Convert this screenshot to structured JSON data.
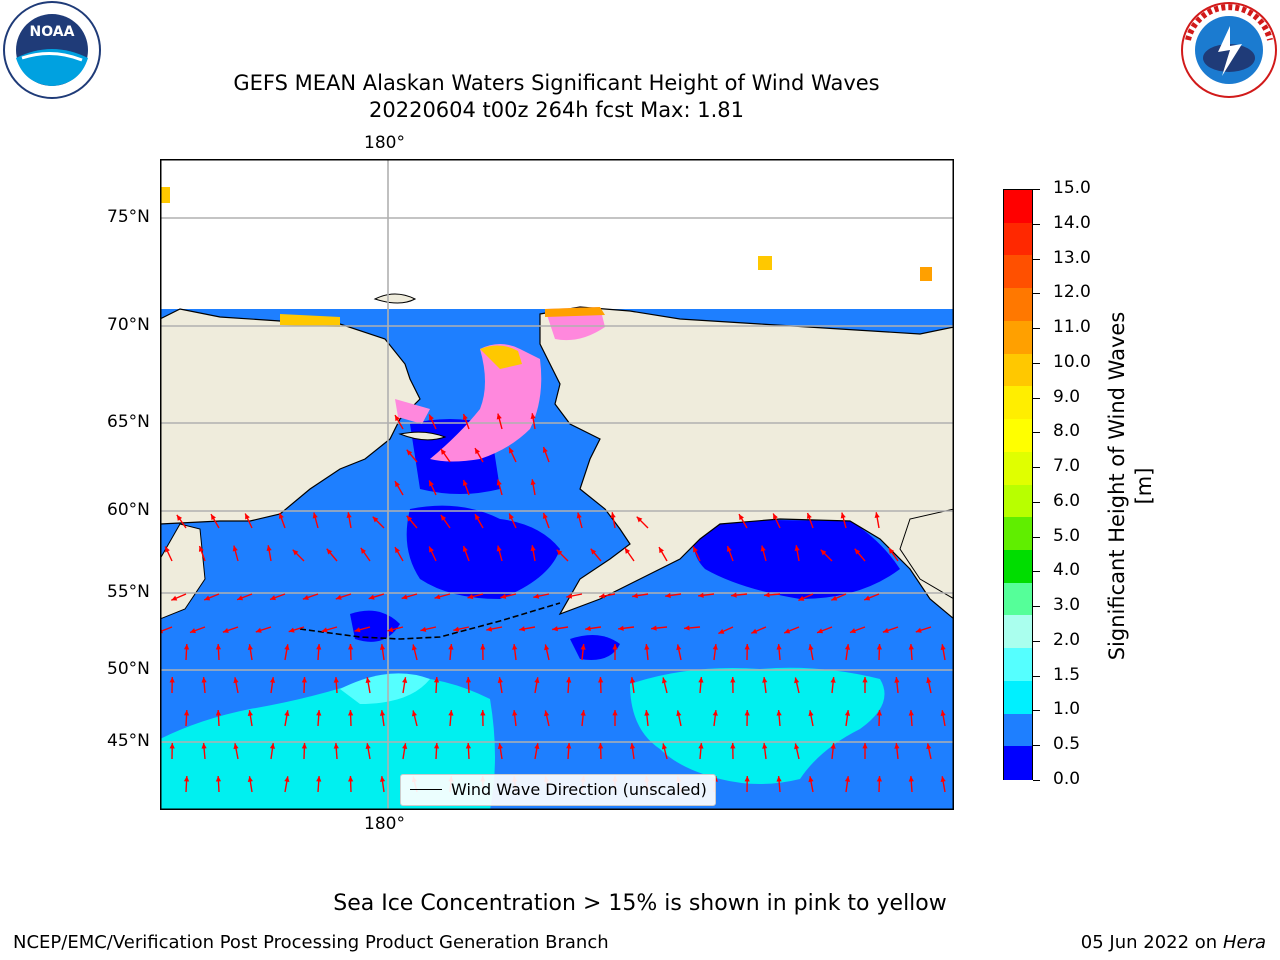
{
  "header": {
    "title_line1": "GEFS MEAN Alaskan Waters Significant Height of Wind Waves",
    "title_line2": "20220604 t00z 264h fcst   Max: 1.81"
  },
  "logos": {
    "left": {
      "name": "NOARA logo",
      "text": "NOAA",
      "ring_text": "NATIONAL OCEANIC AND ATMOSPHERIC ADMINISTRATION · U.S. DEPARTMENT OF COMMERCE"
    },
    "right": {
      "name": "National Weather Service logo",
      "ring_text": "NATIONAL WEATHER SERVICE"
    }
  },
  "map": {
    "lon_top_label": "180°",
    "lon_bottom_label": "180°",
    "lat_labels": [
      "75°N",
      "70°N",
      "65°N",
      "60°N",
      "55°N",
      "50°N",
      "45°N"
    ],
    "legend_label": "Wind Wave Direction (unscaled)",
    "colors": {
      "land": "#efecdc",
      "ocean_low": "#0000ff",
      "ocean_mid": "#1e7fff",
      "ocean_high": "#00f0f0",
      "arrow": "#ff0000",
      "ice": "#ff88dd"
    }
  },
  "colorbar": {
    "label": "Significant Height of Wind Waves [m]",
    "ticks": [
      "15.0",
      "14.0",
      "13.0",
      "12.0",
      "11.0",
      "10.0",
      "9.0",
      "8.0",
      "7.0",
      "6.0",
      "5.0",
      "4.0",
      "3.0",
      "2.0",
      "1.5",
      "1.0",
      "0.5",
      "0.0"
    ],
    "colors": [
      "#ff0000",
      "#ff2800",
      "#ff5000",
      "#ff7800",
      "#ffa000",
      "#ffc800",
      "#ffee00",
      "#ffff00",
      "#e0ff00",
      "#b8ff00",
      "#60ee00",
      "#00dd00",
      "#55ff99",
      "#aaffee",
      "#55ffff",
      "#00f0ff",
      "#1e7fff",
      "#0000ff"
    ]
  },
  "caption": "Sea Ice Concentration > 15% is shown in pink to yellow",
  "footer": {
    "left": "NCEP/EMC/Verification Post Processing Product Generation Branch",
    "date": "05 Jun 2022 on",
    "host": "Hera"
  }
}
